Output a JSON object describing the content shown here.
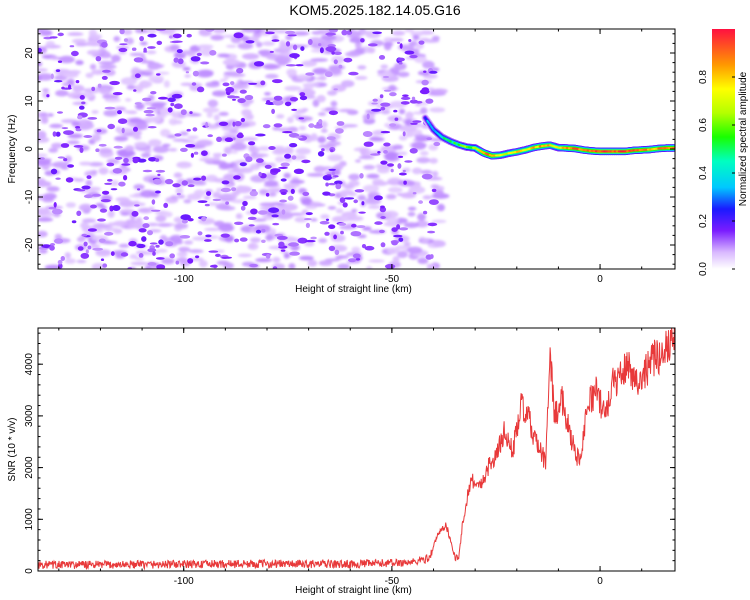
{
  "title": "KOM5.2025.182.14.05.G16",
  "chart_data": [
    {
      "type": "heatmap",
      "title": "KOM5.2025.182.14.05.G16",
      "xlabel": "Height of straight line (km)",
      "ylabel": "Frequency (Hz)",
      "xlim": [
        -135,
        18
      ],
      "ylim": [
        -25,
        25
      ],
      "xticks": [
        -100,
        -50,
        0
      ],
      "yticks": [
        -20,
        -10,
        0,
        10,
        20
      ],
      "noise_region_x": [
        -135,
        -40
      ],
      "signal_trace": {
        "x": [
          -42,
          -40,
          -38,
          -36,
          -34,
          -32,
          -30,
          -28,
          -26,
          -24,
          -22,
          -20,
          -18,
          -16,
          -14,
          -12,
          -10,
          -8,
          -6,
          -4,
          -2,
          0,
          2,
          4,
          6,
          8,
          10,
          12,
          14,
          16,
          18
        ],
        "freq": [
          6.5,
          4,
          2.5,
          1.6,
          0.9,
          0.4,
          0.2,
          -0.8,
          -1.4,
          -1.3,
          -0.9,
          -0.6,
          -0.2,
          0.3,
          0.6,
          0.8,
          0.3,
          0.2,
          0.1,
          -0.2,
          -0.4,
          -0.5,
          -0.5,
          -0.5,
          -0.5,
          -0.3,
          -0.2,
          -0.1,
          0.1,
          0.2,
          0.2
        ],
        "amp": [
          0.25,
          0.35,
          0.45,
          0.5,
          0.55,
          0.6,
          0.65,
          0.85,
          0.9,
          0.75,
          0.7,
          0.8,
          0.75,
          0.8,
          0.85,
          0.8,
          0.7,
          0.85,
          0.9,
          0.85,
          0.9,
          0.95,
          0.95,
          0.95,
          0.95,
          0.9,
          0.9,
          0.85,
          0.85,
          0.9,
          0.9
        ]
      },
      "colorbar": {
        "label": "Normalized spectral amplitude",
        "range": [
          0,
          1
        ],
        "ticks": [
          0.0,
          0.2,
          0.4,
          0.6,
          0.8
        ],
        "tick_labels": [
          "0.0",
          "0.2",
          "0.4",
          "0.6",
          "0.8"
        ]
      }
    },
    {
      "type": "line",
      "xlabel": "Height of straight line (km)",
      "ylabel": "SNR (10 * v/v)",
      "xlim": [
        -135,
        18
      ],
      "ylim": [
        0,
        4700
      ],
      "xticks": [
        -100,
        -50,
        0
      ],
      "yticks": [
        0,
        1000,
        2000,
        3000,
        4000
      ],
      "color": "#e8393a",
      "x": [
        -135,
        -120,
        -100,
        -80,
        -60,
        -45,
        -41,
        -39,
        -37,
        -35,
        -34,
        -33,
        -31,
        -29,
        -27,
        -25,
        -23,
        -21,
        -19,
        -17,
        -15,
        -13,
        -12,
        -11,
        -9,
        -7,
        -5,
        -3,
        -1,
        1,
        3,
        5,
        7,
        9,
        11,
        13,
        15,
        17,
        18
      ],
      "y": [
        120,
        120,
        130,
        140,
        130,
        170,
        250,
        700,
        900,
        300,
        200,
        950,
        1800,
        1600,
        2000,
        2200,
        2700,
        2300,
        3200,
        2900,
        2400,
        2100,
        4300,
        3000,
        3300,
        2600,
        2100,
        3200,
        3500,
        3000,
        3600,
        3800,
        4000,
        3600,
        3900,
        4100,
        4200,
        4500,
        4700
      ]
    }
  ]
}
